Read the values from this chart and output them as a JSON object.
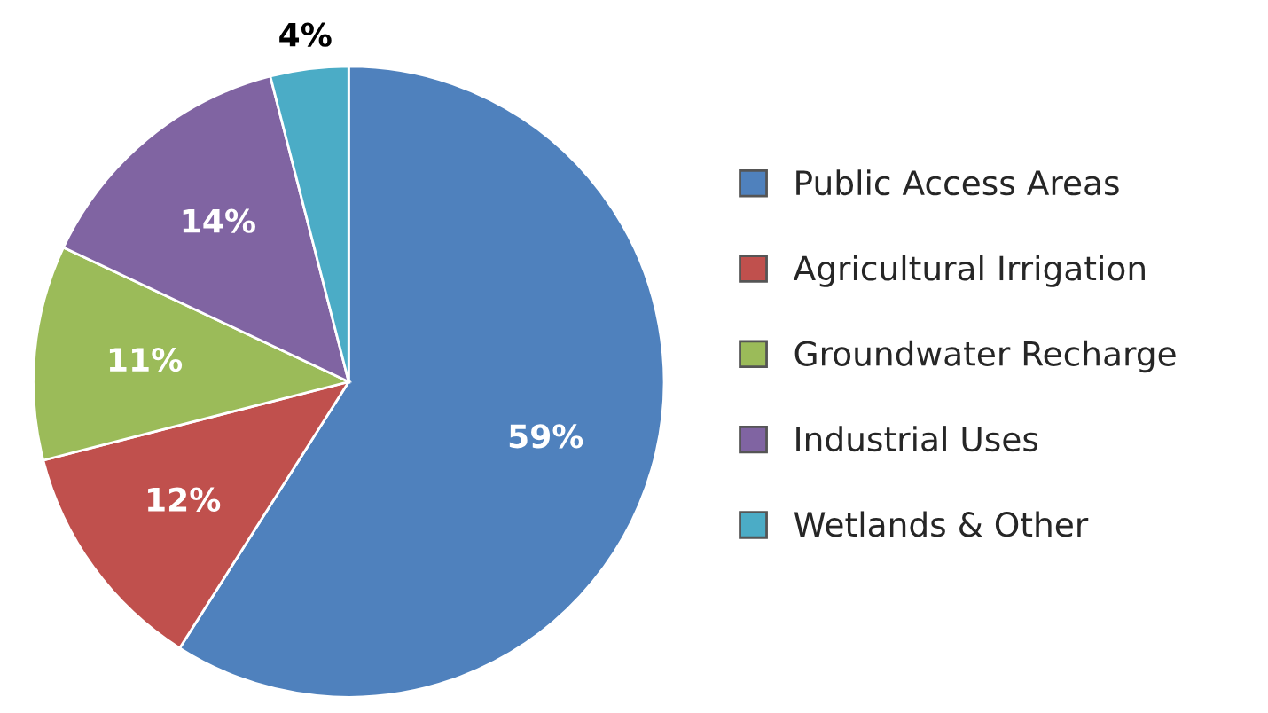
{
  "chart_data": {
    "type": "pie",
    "categories": [
      "Public Access Areas",
      "Agricultural Irrigation",
      "Groundwater Recharge",
      "Industrial Uses",
      "Wetlands & Other"
    ],
    "values": [
      59,
      12,
      11,
      14,
      4
    ],
    "colors": [
      "#4f81bd",
      "#c0504d",
      "#9bbb59",
      "#8064a2",
      "#4bacc6"
    ],
    "value_labels": [
      "59%",
      "12%",
      "11%",
      "14%",
      "4%"
    ],
    "legend": "right"
  }
}
